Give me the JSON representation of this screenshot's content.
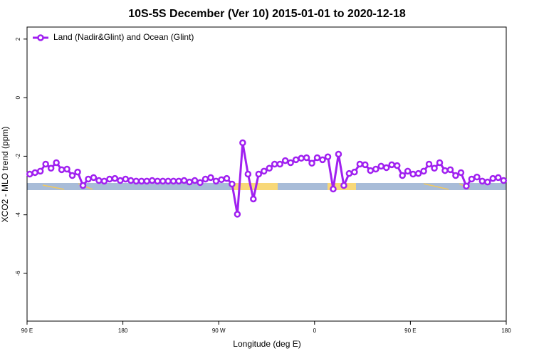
{
  "chart_data": {
    "type": "line",
    "title": "10S-5S December (Ver 10)   2015-01-01 to 2020-12-18",
    "x_label": "Longitude (deg E)",
    "y_label": "XCO2 - MLO trend (ppm)",
    "x": [
      92.5,
      97.5,
      102.5,
      107.5,
      112.5,
      117.5,
      122.5,
      127.5,
      132.5,
      137.5,
      142.5,
      147.5,
      152.5,
      157.5,
      162.5,
      167.5,
      172.5,
      177.5,
      182.5,
      187.5,
      192.5,
      197.5,
      202.5,
      207.5,
      212.5,
      217.5,
      222.5,
      227.5,
      232.5,
      237.5,
      242.5,
      247.5,
      252.5,
      257.5,
      262.5,
      267.5,
      272.5,
      277.5,
      282.5,
      287.5,
      292.5,
      297.5,
      302.5,
      307.5,
      312.5,
      317.5,
      322.5,
      327.5,
      332.5,
      337.5,
      342.5,
      347.5,
      352.5,
      357.5,
      362.5,
      367.5,
      372.5,
      377.5,
      382.5,
      387.5,
      392.5,
      397.5,
      402.5,
      407.5,
      412.5,
      417.5,
      422.5,
      427.5,
      432.5,
      437.5,
      442.5,
      447.5,
      452.5,
      457.5,
      462.5,
      467.5,
      472.5,
      477.5,
      482.5,
      487.5,
      492.5,
      497.5,
      502.5,
      507.5,
      512.5,
      517.5,
      522.5,
      527.5,
      532.5,
      537.5
    ],
    "series": [
      {
        "name": "Land (Nadir&Glint) and Ocean (Glint)",
        "color": "#a020f0",
        "values": [
          -2.61,
          -2.56,
          -2.51,
          -2.27,
          -2.41,
          -2.22,
          -2.46,
          -2.44,
          -2.66,
          -2.54,
          -3.0,
          -2.78,
          -2.73,
          -2.83,
          -2.85,
          -2.78,
          -2.76,
          -2.83,
          -2.78,
          -2.83,
          -2.85,
          -2.85,
          -2.85,
          -2.83,
          -2.85,
          -2.85,
          -2.85,
          -2.85,
          -2.85,
          -2.83,
          -2.88,
          -2.83,
          -2.9,
          -2.78,
          -2.73,
          -2.85,
          -2.8,
          -2.76,
          -2.95,
          -3.98,
          -1.54,
          -2.61,
          -3.46,
          -2.61,
          -2.51,
          -2.41,
          -2.27,
          -2.27,
          -2.15,
          -2.22,
          -2.12,
          -2.07,
          -2.05,
          -2.24,
          -2.05,
          -2.12,
          -2.02,
          -3.12,
          -1.93,
          -3.0,
          -2.59,
          -2.54,
          -2.27,
          -2.29,
          -2.49,
          -2.44,
          -2.34,
          -2.39,
          -2.29,
          -2.32,
          -2.66,
          -2.51,
          -2.61,
          -2.59,
          -2.51,
          -2.27,
          -2.41,
          -2.22,
          -2.49,
          -2.46,
          -2.66,
          -2.56,
          -3.02,
          -2.78,
          -2.71,
          -2.85,
          -2.88,
          -2.76,
          -2.73,
          -2.83
        ]
      }
    ],
    "xlim": [
      90,
      540
    ],
    "ylim": [
      -7.63,
      2.41
    ],
    "xticks": [
      {
        "value": 90,
        "label": "90 E"
      },
      180,
      {
        "value": 270,
        "label": "90 W"
      },
      {
        "value": 360,
        "label": "0"
      },
      {
        "value": 450,
        "label": "90 E"
      },
      {
        "value": 540,
        "label": "180"
      }
    ],
    "yticks": [
      -6,
      -4,
      -2,
      0,
      2
    ],
    "legend": "top-left"
  }
}
